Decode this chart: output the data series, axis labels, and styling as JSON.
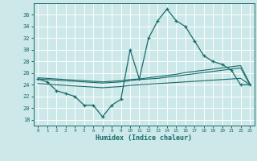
{
  "title": "",
  "xlabel": "Humidex (Indice chaleur)",
  "xlim": [
    -0.5,
    23.5
  ],
  "ylim": [
    17,
    38
  ],
  "yticks": [
    18,
    20,
    22,
    24,
    26,
    28,
    30,
    32,
    34,
    36
  ],
  "xticks": [
    0,
    1,
    2,
    3,
    4,
    5,
    6,
    7,
    8,
    9,
    10,
    11,
    12,
    13,
    14,
    15,
    16,
    17,
    18,
    19,
    20,
    21,
    22,
    23
  ],
  "bg_color": "#cce8e8",
  "line_color": "#1a6b6b",
  "grid_color": "#ffffff",
  "series": {
    "line1": {
      "x": [
        0,
        1,
        2,
        3,
        4,
        5,
        6,
        7,
        8,
        9,
        10,
        11,
        12,
        13,
        14,
        15,
        16,
        17,
        18,
        19,
        20,
        21,
        22,
        23
      ],
      "y": [
        25.0,
        24.5,
        23.0,
        22.5,
        22.0,
        20.5,
        20.5,
        18.5,
        20.5,
        21.5,
        30.0,
        25.0,
        32.0,
        35.0,
        37.0,
        35.0,
        34.0,
        31.5,
        29.0,
        28.0,
        27.5,
        26.5,
        24.0,
        24.0
      ]
    },
    "line2": {
      "x": [
        0,
        1,
        2,
        3,
        4,
        5,
        6,
        7,
        8,
        9,
        10,
        11,
        12,
        13,
        14,
        15,
        16,
        17,
        18,
        19,
        20,
        21,
        22,
        23
      ],
      "y": [
        25.2,
        25.1,
        25.0,
        24.9,
        24.8,
        24.7,
        24.6,
        24.5,
        24.6,
        24.7,
        24.9,
        25.0,
        25.2,
        25.4,
        25.6,
        25.8,
        26.1,
        26.3,
        26.5,
        26.7,
        26.9,
        27.1,
        27.3,
        24.2
      ]
    },
    "line3": {
      "x": [
        0,
        1,
        2,
        3,
        4,
        5,
        6,
        7,
        8,
        9,
        10,
        11,
        12,
        13,
        14,
        15,
        16,
        17,
        18,
        19,
        20,
        21,
        22,
        23
      ],
      "y": [
        25.0,
        24.9,
        24.8,
        24.7,
        24.6,
        24.5,
        24.4,
        24.3,
        24.4,
        24.5,
        24.7,
        24.9,
        25.0,
        25.1,
        25.3,
        25.5,
        25.7,
        25.9,
        26.1,
        26.3,
        26.5,
        26.7,
        26.9,
        24.0
      ]
    },
    "line4": {
      "x": [
        0,
        1,
        2,
        3,
        4,
        5,
        6,
        7,
        8,
        9,
        10,
        11,
        12,
        13,
        14,
        15,
        16,
        17,
        18,
        19,
        20,
        21,
        22,
        23
      ],
      "y": [
        24.2,
        24.1,
        24.0,
        23.9,
        23.8,
        23.7,
        23.6,
        23.5,
        23.6,
        23.7,
        23.9,
        24.0,
        24.1,
        24.2,
        24.3,
        24.4,
        24.5,
        24.6,
        24.7,
        24.8,
        24.9,
        25.0,
        25.1,
        24.0
      ]
    }
  }
}
